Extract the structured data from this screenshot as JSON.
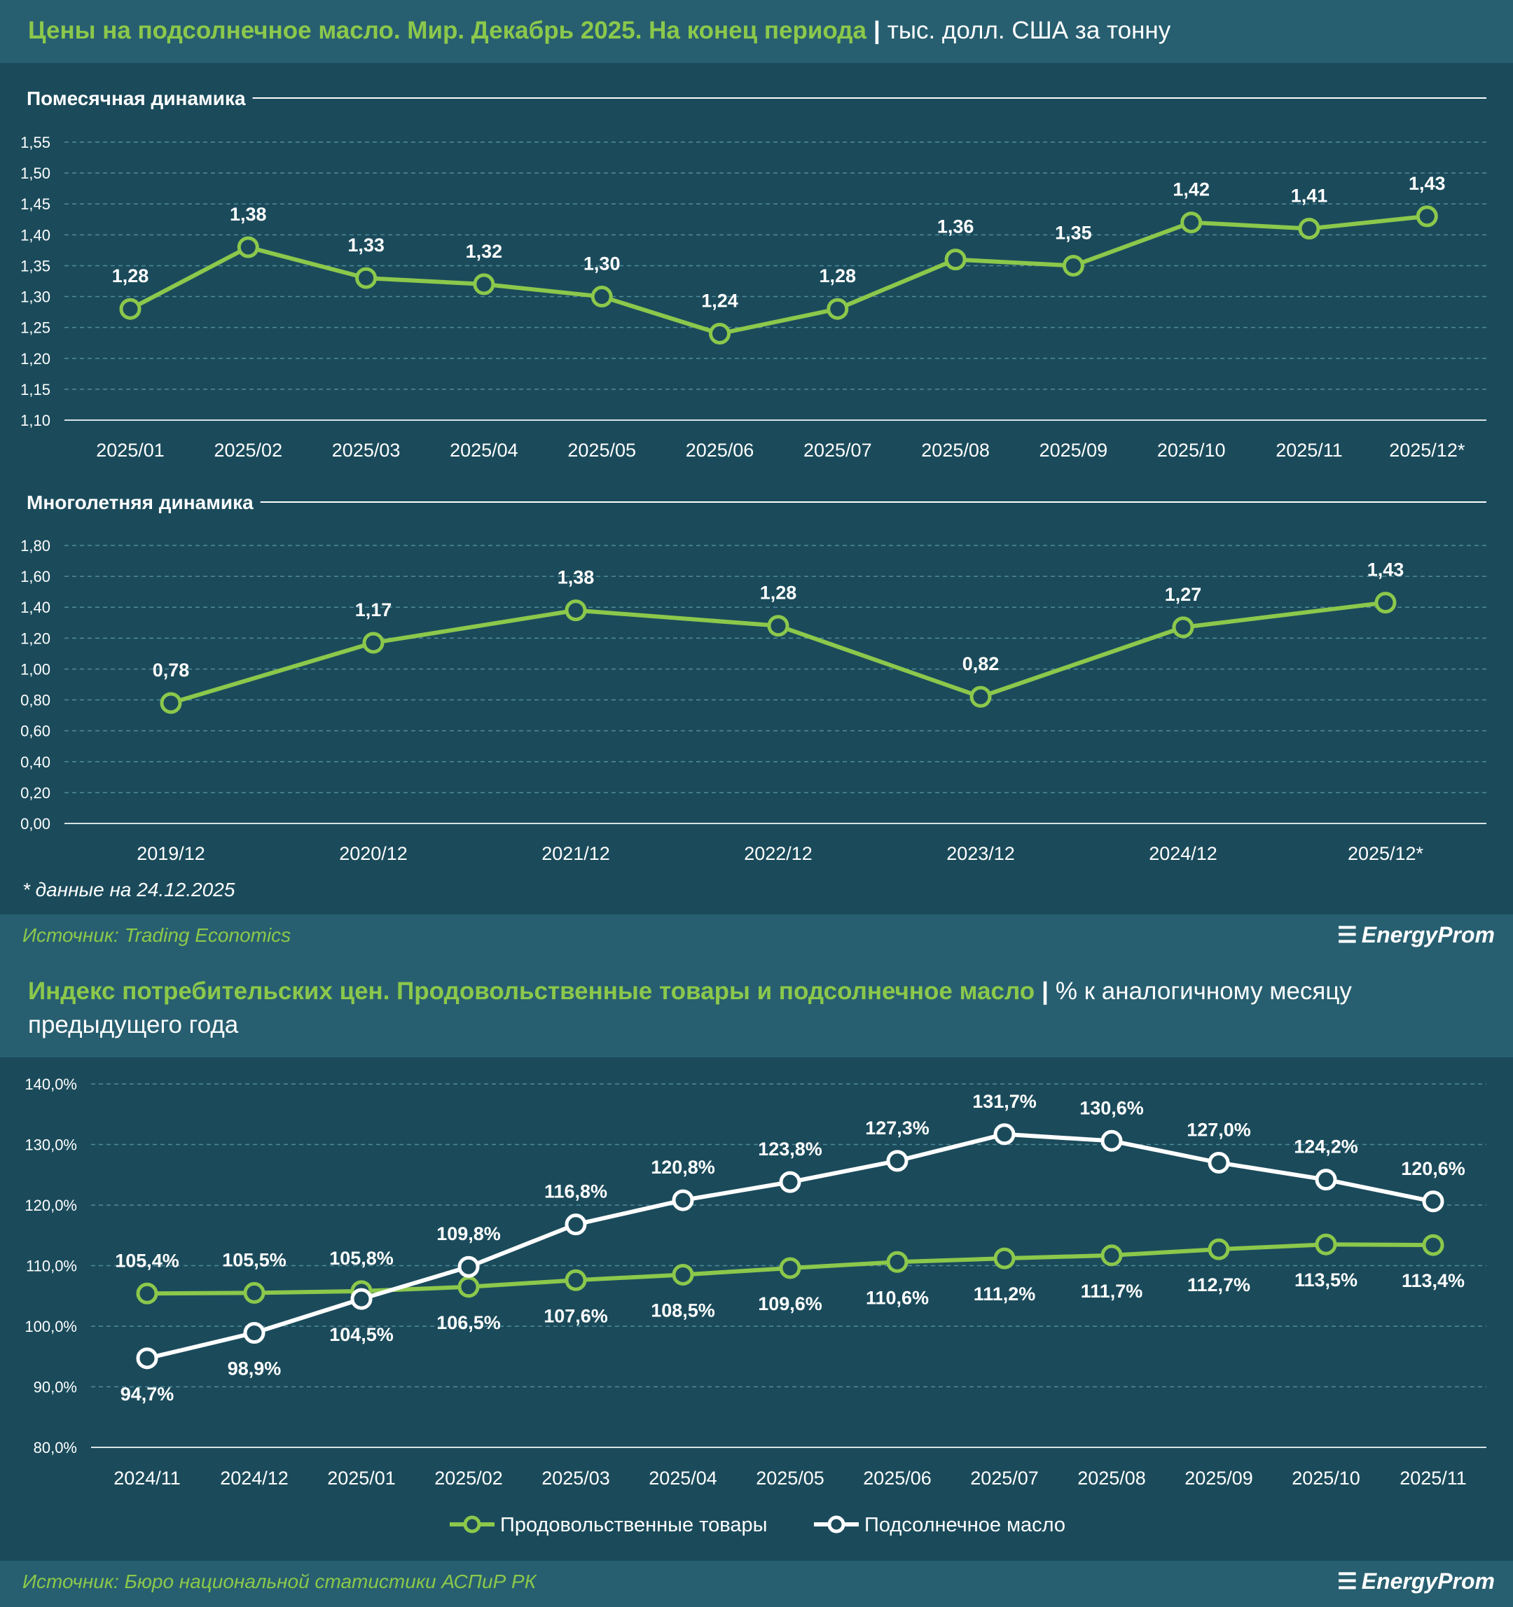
{
  "colors": {
    "background": "#1b4b5b",
    "bar": "#275f70",
    "accent_green": "#8cc84b",
    "white": "#ffffff",
    "grid": "#4f8b99"
  },
  "panel1": {
    "title_main": "Цены на подсолнечное масло. Мир. Декабрь 2025. На конец периода",
    "title_sep": "|",
    "title_unit": "тыс. долл. США за тонну",
    "footnote": "* данные на 24.12.2025",
    "source": "Источник: Trading Economics",
    "brand": "EnergyProm",
    "brand_icon": "energyprom-logo-icon"
  },
  "panel2": {
    "title_main": "Индекс потребительских цен. Продовольственные товары и подсолнечное масло",
    "title_sep": "|",
    "title_unit": "% к аналогичному месяцу предыдущего года",
    "source": "Источник: Бюро национальной статистики АСПиР РК",
    "brand": "EnergyProm",
    "brand_icon": "energyprom-logo-icon"
  },
  "chart_data": [
    {
      "type": "line",
      "title": "Помесячная динамика",
      "categories": [
        "2025/01",
        "2025/02",
        "2025/03",
        "2025/04",
        "2025/05",
        "2025/06",
        "2025/07",
        "2025/08",
        "2025/09",
        "2025/10",
        "2025/11",
        "2025/12*"
      ],
      "series": [
        {
          "values": [
            1.28,
            1.38,
            1.33,
            1.32,
            1.3,
            1.24,
            1.28,
            1.36,
            1.35,
            1.42,
            1.41,
            1.43
          ],
          "labels": [
            "1,28",
            "1,38",
            "1,33",
            "1,32",
            "1,30",
            "1,24",
            "1,28",
            "1,36",
            "1,35",
            "1,42",
            "1,41",
            "1,43"
          ],
          "color": "#8cc84b",
          "marker_fill": "#1b4b5b"
        }
      ],
      "ylim": [
        1.1,
        1.55
      ],
      "yticks": [
        1.1,
        1.15,
        1.2,
        1.25,
        1.3,
        1.35,
        1.4,
        1.45,
        1.5,
        1.55
      ],
      "ytick_labels": [
        "1,10",
        "1,15",
        "1,20",
        "1,25",
        "1,30",
        "1,35",
        "1,40",
        "1,45",
        "1,50",
        "1,55"
      ],
      "grid": true,
      "legend": "none"
    },
    {
      "type": "line",
      "title": "Многолетняя динамика",
      "categories": [
        "2019/12",
        "2020/12",
        "2021/12",
        "2022/12",
        "2023/12",
        "2024/12",
        "2025/12*"
      ],
      "series": [
        {
          "values": [
            0.78,
            1.17,
            1.38,
            1.28,
            0.82,
            1.27,
            1.43
          ],
          "labels": [
            "0,78",
            "1,17",
            "1,38",
            "1,28",
            "0,82",
            "1,27",
            "1,43"
          ],
          "color": "#8cc84b",
          "marker_fill": "#1b4b5b"
        }
      ],
      "ylim": [
        0,
        1.8
      ],
      "yticks": [
        0,
        0.2,
        0.4,
        0.6,
        0.8,
        1.0,
        1.2,
        1.4,
        1.6,
        1.8
      ],
      "ytick_labels": [
        "0,00",
        "0,20",
        "0,40",
        "0,60",
        "0,80",
        "1,00",
        "1,20",
        "1,40",
        "1,60",
        "1,80"
      ],
      "grid": true,
      "legend": "none"
    },
    {
      "type": "line",
      "title": "",
      "categories": [
        "2024/11",
        "2024/12",
        "2025/01",
        "2025/02",
        "2025/03",
        "2025/04",
        "2025/05",
        "2025/06",
        "2025/07",
        "2025/08",
        "2025/09",
        "2025/10",
        "2025/11"
      ],
      "series": [
        {
          "name": "Продовольственные товары",
          "values": [
            105.4,
            105.5,
            105.8,
            106.5,
            107.6,
            108.5,
            109.6,
            110.6,
            111.2,
            111.7,
            112.7,
            113.5,
            113.4
          ],
          "labels": [
            "105,4%",
            "105,5%",
            "105,8%",
            "106,5%",
            "107,6%",
            "108,5%",
            "109,6%",
            "110,6%",
            "111,2%",
            "111,7%",
            "112,7%",
            "113,5%",
            "113,4%"
          ],
          "label_pos": [
            "above",
            "above",
            "above",
            "below",
            "below",
            "below",
            "below",
            "below",
            "below",
            "below",
            "below",
            "below",
            "below"
          ],
          "color": "#8cc84b",
          "marker_fill": "#1b4b5b"
        },
        {
          "name": "Подсолнечное масло",
          "values": [
            94.7,
            98.9,
            104.5,
            109.8,
            116.8,
            120.8,
            123.8,
            127.3,
            131.7,
            130.6,
            127.0,
            124.2,
            120.6
          ],
          "labels": [
            "94,7%",
            "98,9%",
            "104,5%",
            "109,8%",
            "116,8%",
            "120,8%",
            "123,8%",
            "127,3%",
            "131,7%",
            "130,6%",
            "127,0%",
            "124,2%",
            "120,6%"
          ],
          "label_pos": [
            "below",
            "below",
            "below",
            "above",
            "above",
            "above",
            "above",
            "above",
            "above",
            "above",
            "above",
            "above",
            "above"
          ],
          "color": "#ffffff",
          "marker_fill": "#1b4b5b"
        }
      ],
      "ylim": [
        80,
        140
      ],
      "yticks": [
        80,
        90,
        100,
        110,
        120,
        130,
        140
      ],
      "ytick_labels": [
        "80,0%",
        "90,0%",
        "100,0%",
        "110,0%",
        "120,0%",
        "130,0%",
        "140,0%"
      ],
      "grid": true,
      "legend": "bottom-center"
    }
  ]
}
